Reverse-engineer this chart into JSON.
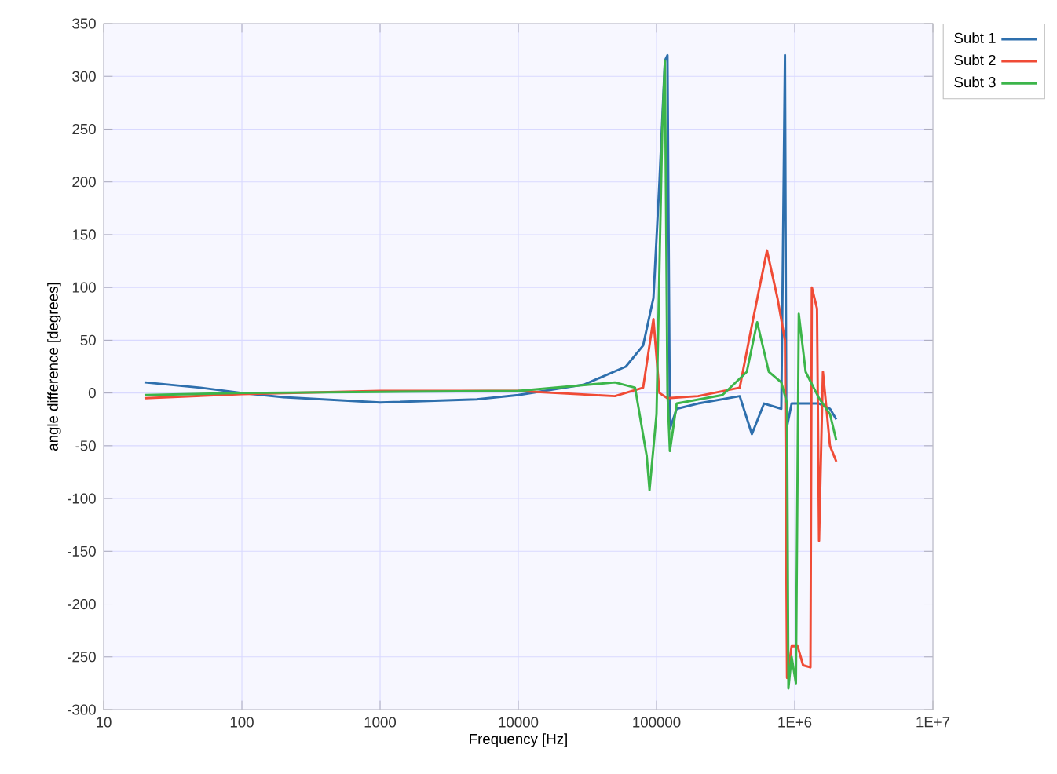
{
  "chart_data": {
    "type": "line",
    "xlabel": "Frequency [Hz]",
    "ylabel": "angle difference [degrees]",
    "log": "x",
    "grid": true,
    "legend": "top right",
    "marker": "none",
    "line_style": "solid",
    "xlim": [
      10,
      10000000
    ],
    "xticks": [
      10,
      100,
      1000,
      10000,
      100000,
      {
        "value": 1000000,
        "label": "1E+6"
      },
      {
        "value": 10000000,
        "label": "1E+7"
      }
    ],
    "ylim": [
      -300,
      350
    ],
    "yticks": [
      -300,
      -250,
      -200,
      -150,
      -100,
      -50,
      0,
      50,
      100,
      150,
      200,
      250,
      300,
      350
    ],
    "series": [
      {
        "name": "Subt 1",
        "color": "#2e6fad",
        "x": [
          20,
          50,
          100,
          200,
          1000,
          5000,
          10000,
          30000,
          60000,
          80000,
          95000,
          105000,
          115000,
          120000,
          125000,
          140000,
          200000,
          400000,
          490000,
          600000,
          800000,
          850000,
          870000,
          950000,
          1500000,
          1800000,
          2000000
        ],
        "values": [
          10,
          5,
          0,
          -4,
          -9,
          -6,
          -2,
          8,
          25,
          45,
          90,
          200,
          315,
          320,
          -34,
          -15,
          -10,
          -3,
          -39,
          -10,
          -15,
          320,
          -35,
          -10,
          -10,
          -15,
          -25
        ]
      },
      {
        "name": "Subt 2",
        "color": "#f04b36",
        "x": [
          20,
          100,
          1000,
          10000,
          50000,
          80000,
          95000,
          105000,
          120000,
          200000,
          400000,
          500000,
          630000,
          750000,
          850000,
          880000,
          950000,
          1050000,
          1150000,
          1300000,
          1330000,
          1450000,
          1500000,
          1600000,
          1800000,
          2000000
        ],
        "values": [
          -5,
          -1,
          2,
          2,
          -3,
          5,
          70,
          0,
          -5,
          -3,
          5,
          70,
          135,
          90,
          50,
          -270,
          -240,
          -240,
          -258,
          -260,
          100,
          80,
          -140,
          20,
          -50,
          -65
        ]
      },
      {
        "name": "Subt 3",
        "color": "#3cb54a",
        "x": [
          20,
          100,
          1000,
          10000,
          50000,
          70000,
          85000,
          89000,
          100000,
          110000,
          115000,
          120000,
          125000,
          140000,
          300000,
          450000,
          535000,
          650000,
          800000,
          880000,
          900000,
          950000,
          1020000,
          1070000,
          1200000,
          1500000,
          1800000,
          2000000
        ],
        "values": [
          -2,
          0,
          1,
          2,
          10,
          5,
          -60,
          -92,
          -20,
          250,
          315,
          0,
          -55,
          -10,
          -2,
          20,
          67,
          20,
          10,
          -10,
          -280,
          -250,
          -275,
          75,
          20,
          -5,
          -20,
          -45
        ]
      }
    ]
  }
}
